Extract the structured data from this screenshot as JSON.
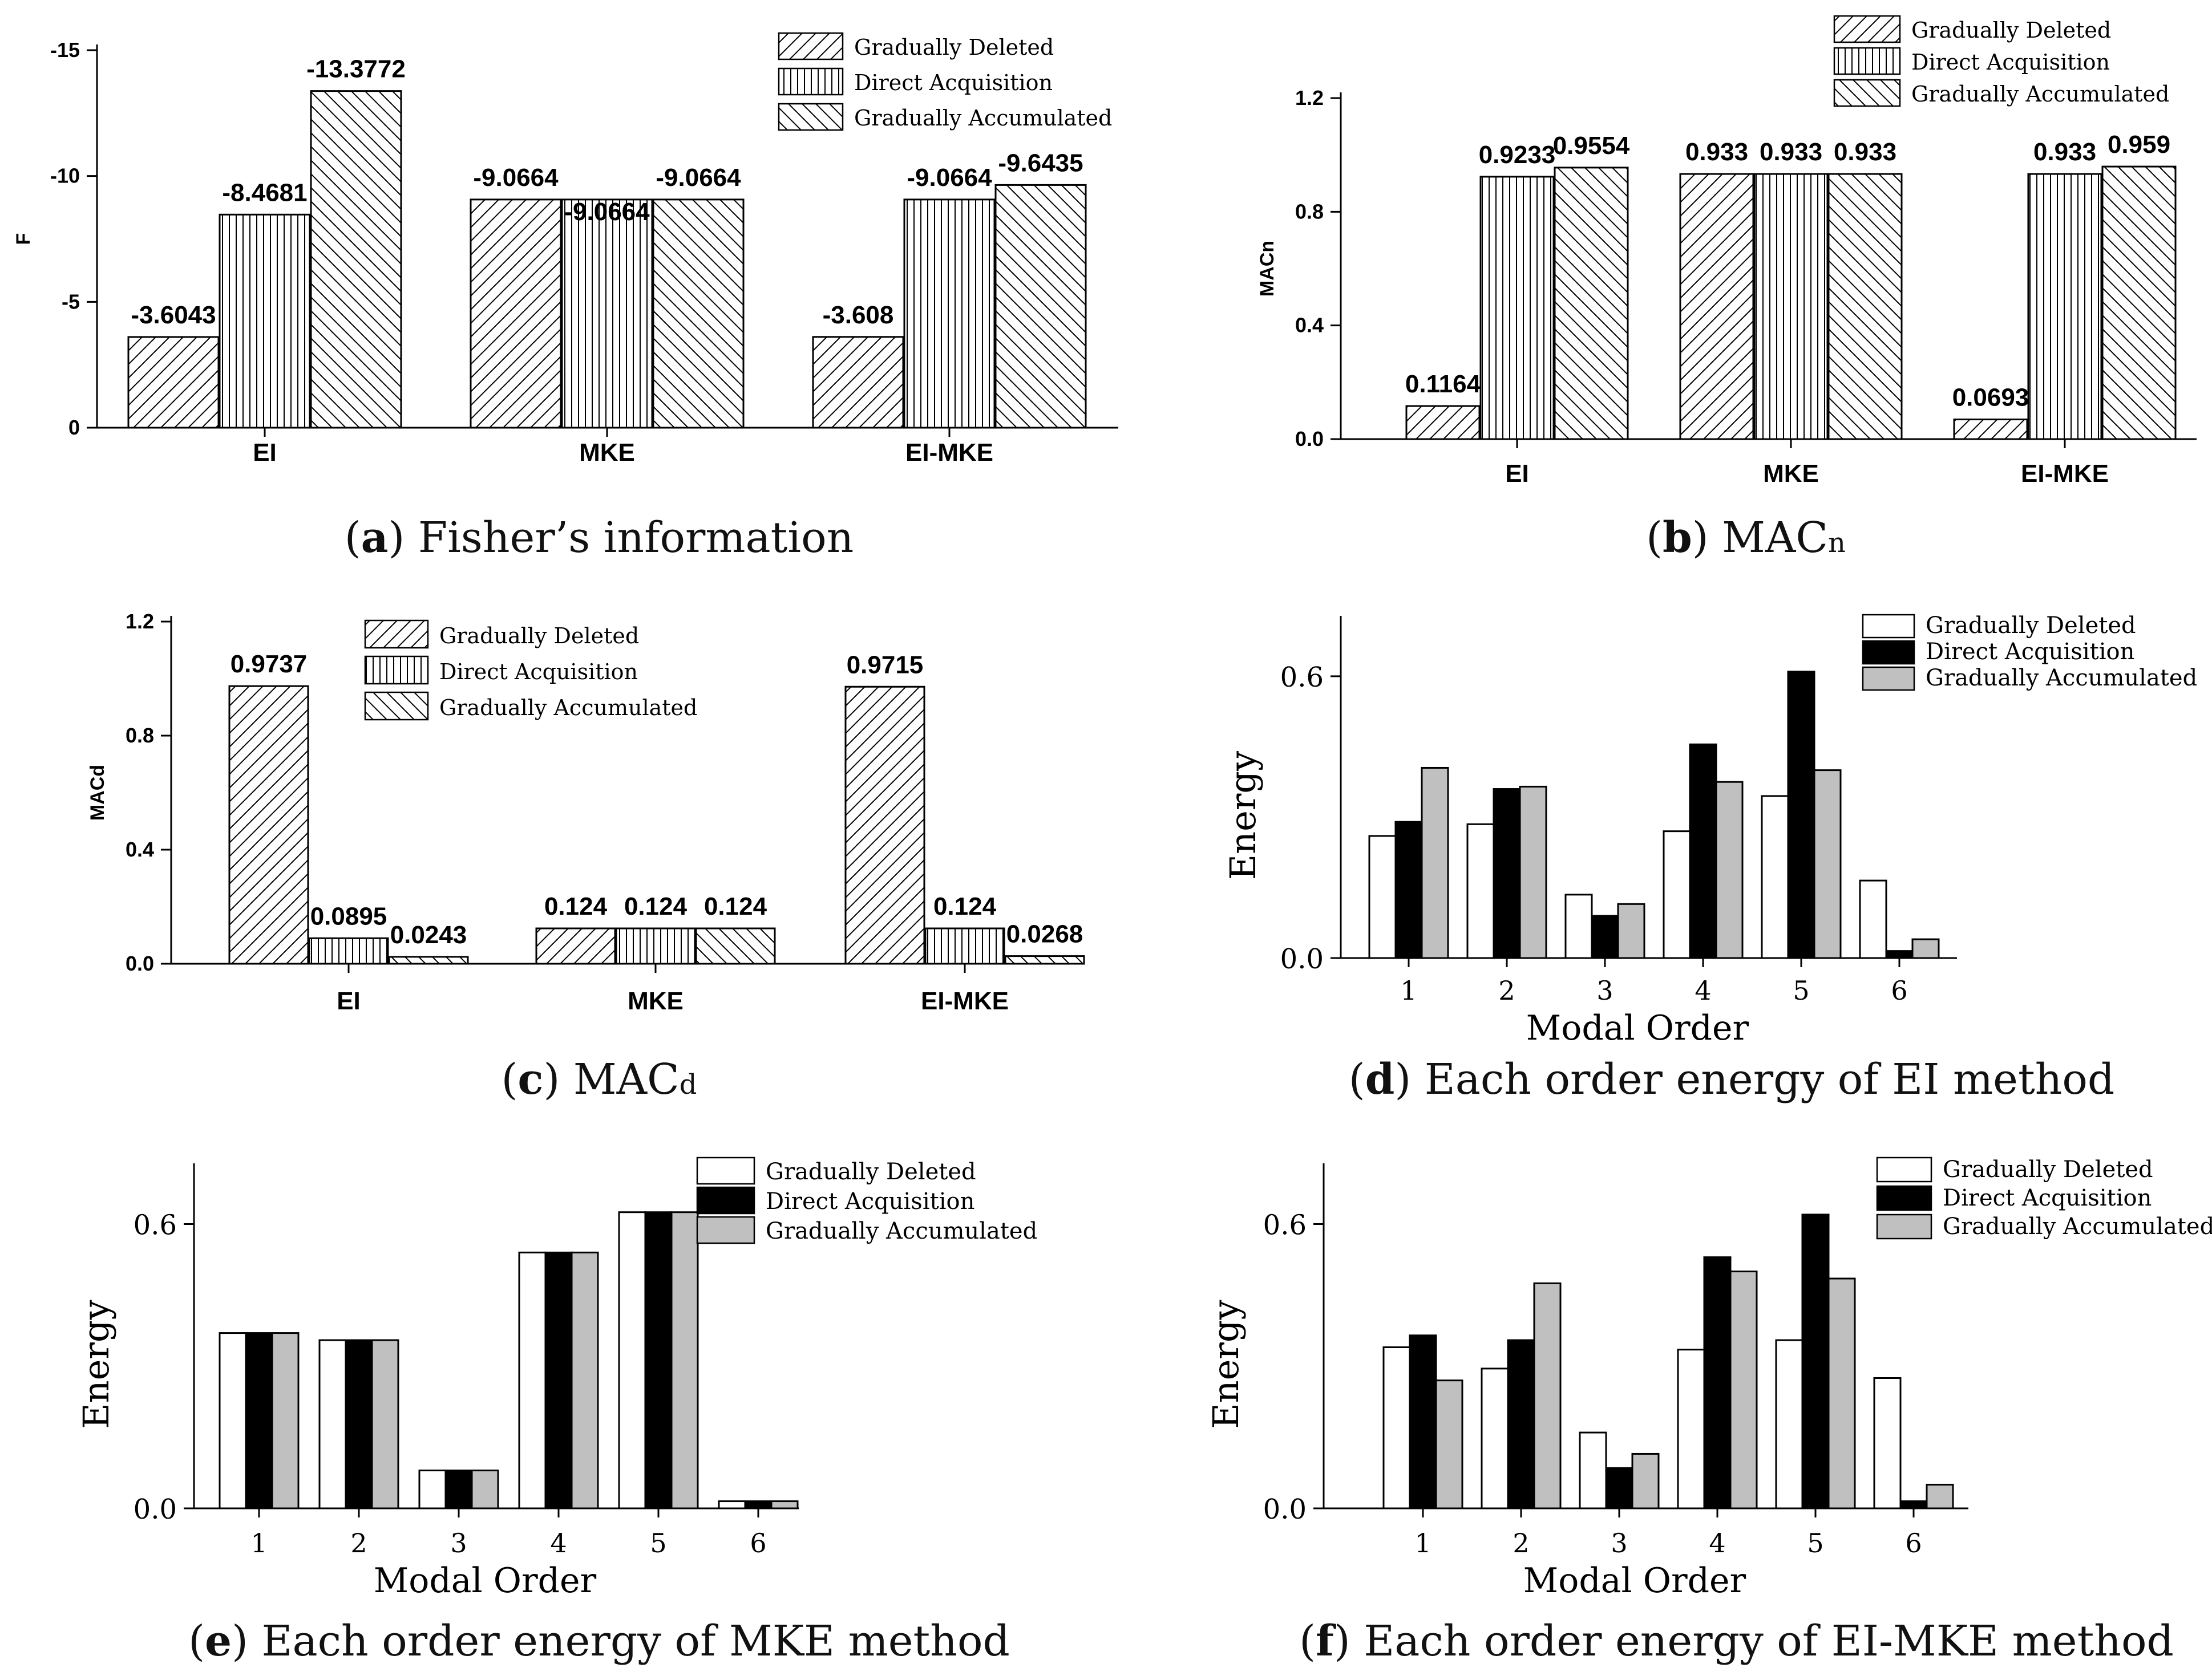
{
  "colors": {
    "bar_fill": "#ffffff",
    "stroke": "#000000",
    "series_solid": [
      "#ffffff",
      "#000000",
      "#c0c0c0"
    ]
  },
  "charts": [
    {
      "id": "a",
      "chart_data": {
        "type": "bar",
        "title": "",
        "xlabel": "",
        "ylabel": "F",
        "ylim": [
          0,
          -15
        ],
        "yticks": [
          "0",
          "-5",
          "-10",
          "-15"
        ],
        "ytick_values": [
          0,
          -5,
          -10,
          -15
        ],
        "categories": [
          "EI",
          "MKE",
          "EI-MKE"
        ],
        "legend": [
          "Gradually Deleted",
          "Direct Acquisition",
          "Gradually Accumulated"
        ],
        "legend_position": "top-right",
        "series": [
          {
            "name": "Gradually Deleted",
            "pattern": "diag",
            "values": [
              -3.6043,
              -9.0664,
              -3.608
            ],
            "labels": [
              "-3.6043",
              "-9.0664",
              "-3.608"
            ]
          },
          {
            "name": "Direct Acquisition",
            "pattern": "vert",
            "values": [
              -8.4681,
              -9.0664,
              -9.0664
            ],
            "labels": [
              "-8.4681",
              "-9.0664",
              "-9.0664"
            ]
          },
          {
            "name": "Gradually Accumulated",
            "pattern": "back",
            "values": [
              -13.3772,
              -9.0664,
              -9.6435
            ],
            "labels": [
              "-13.3772",
              "-9.0664",
              "-9.6435"
            ]
          }
        ]
      },
      "caption": {
        "letter": "a",
        "text": " Fisher’s information",
        "sub": ""
      }
    },
    {
      "id": "b",
      "chart_data": {
        "type": "bar",
        "title": "",
        "xlabel": "",
        "ylabel": "MACn",
        "ylim": [
          0,
          1.2
        ],
        "yticks": [
          "0.0",
          "0.4",
          "0.8",
          "1.2"
        ],
        "ytick_values": [
          0,
          0.4,
          0.8,
          1.2
        ],
        "categories": [
          "EI",
          "MKE",
          "EI-MKE"
        ],
        "legend": [
          "Gradually Deleted",
          "Direct Acquisition",
          "Gradually Accumulated"
        ],
        "legend_position": "top-right",
        "series": [
          {
            "name": "Gradually Deleted",
            "pattern": "diag",
            "values": [
              0.1164,
              0.933,
              0.0693
            ],
            "labels": [
              "0.1164",
              "0.933",
              "0.0693"
            ]
          },
          {
            "name": "Direct Acquisition",
            "pattern": "vert",
            "values": [
              0.9233,
              0.933,
              0.933
            ],
            "labels": [
              "0.9233",
              "0.933",
              "0.933"
            ]
          },
          {
            "name": "Gradually Accumulated",
            "pattern": "back",
            "values": [
              0.9554,
              0.933,
              0.959
            ],
            "labels": [
              "0.9554",
              "0.933",
              "0.959"
            ]
          }
        ]
      },
      "caption": {
        "letter": "b",
        "text": " MAC",
        "sub": "n"
      }
    },
    {
      "id": "c",
      "chart_data": {
        "type": "bar",
        "title": "",
        "xlabel": "",
        "ylabel": "MACd",
        "ylim": [
          0,
          1.2
        ],
        "yticks": [
          "0.0",
          "0.4",
          "0.8",
          "1.2"
        ],
        "ytick_values": [
          0,
          0.4,
          0.8,
          1.2
        ],
        "categories": [
          "EI",
          "MKE",
          "EI-MKE"
        ],
        "legend": [
          "Gradually Deleted",
          "Direct Acquisition",
          "Gradually Accumulated"
        ],
        "legend_position": "top-right",
        "series": [
          {
            "name": "Gradually Deleted",
            "pattern": "diag",
            "values": [
              0.9737,
              0.124,
              0.9715
            ],
            "labels": [
              "0.9737",
              "0.124",
              "0.9715"
            ]
          },
          {
            "name": "Direct Acquisition",
            "pattern": "vert",
            "values": [
              0.0895,
              0.124,
              0.124
            ],
            "labels": [
              "0.0895",
              "0.124",
              "0.124"
            ]
          },
          {
            "name": "Gradually Accumulated",
            "pattern": "back",
            "values": [
              0.0243,
              0.124,
              0.0268
            ],
            "labels": [
              "0.0243",
              "0.124",
              "0.0268"
            ]
          }
        ]
      },
      "caption": {
        "letter": "c",
        "text": " MAC",
        "sub": "d"
      }
    },
    {
      "id": "d",
      "chart_data": {
        "type": "bar",
        "title": "",
        "xlabel": "Modal Order",
        "ylabel": "Energy",
        "ylim": [
          0,
          0.68
        ],
        "yticks": [
          "0.0",
          "0.6"
        ],
        "ytick_values": [
          0,
          0.6
        ],
        "categories": [
          "1",
          "2",
          "3",
          "4",
          "5",
          "6"
        ],
        "legend": [
          "Gradually Deleted",
          "Direct Acquisition",
          "Gradually Accumulated"
        ],
        "legend_position": "top-right",
        "series": [
          {
            "name": "Gradually Deleted",
            "values": [
              0.26,
              0.285,
              0.135,
              0.27,
              0.345,
              0.165
            ]
          },
          {
            "name": "Direct Acquisition",
            "values": [
              0.29,
              0.36,
              0.09,
              0.455,
              0.61,
              0.015
            ]
          },
          {
            "name": "Gradually Accumulated",
            "values": [
              0.405,
              0.365,
              0.115,
              0.375,
              0.4,
              0.04
            ]
          }
        ]
      },
      "caption": {
        "letter": "d",
        "text": " Each order energy of EI method",
        "sub": ""
      }
    },
    {
      "id": "e",
      "chart_data": {
        "type": "bar",
        "title": "",
        "xlabel": "Modal Order",
        "ylabel": "Energy",
        "ylim": [
          0,
          0.68
        ],
        "yticks": [
          "0.0",
          "0.6"
        ],
        "ytick_values": [
          0,
          0.6
        ],
        "categories": [
          "1",
          "2",
          "3",
          "4",
          "5",
          "6"
        ],
        "legend": [
          "Gradually Deleted",
          "Direct Acquisition",
          "Gradually Accumulated"
        ],
        "legend_position": "top-right",
        "series": [
          {
            "name": "Gradually Deleted",
            "values": [
              0.37,
              0.355,
              0.08,
              0.54,
              0.625,
              0.015
            ]
          },
          {
            "name": "Direct Acquisition",
            "values": [
              0.37,
              0.355,
              0.08,
              0.54,
              0.625,
              0.015
            ]
          },
          {
            "name": "Gradually Accumulated",
            "values": [
              0.37,
              0.355,
              0.08,
              0.54,
              0.625,
              0.015
            ]
          }
        ]
      },
      "caption": {
        "letter": "e",
        "text": " Each order energy of MKE method",
        "sub": ""
      }
    },
    {
      "id": "f",
      "chart_data": {
        "type": "bar",
        "title": "",
        "xlabel": "Modal Order",
        "ylabel": "Energy",
        "ylim": [
          0,
          0.68
        ],
        "yticks": [
          "0.0",
          "0.6"
        ],
        "ytick_values": [
          0,
          0.6
        ],
        "categories": [
          "1",
          "2",
          "3",
          "4",
          "5",
          "6"
        ],
        "legend": [
          "Gradually Deleted",
          "Direct Acquisition",
          "Gradually Accumulated"
        ],
        "legend_position": "top-right",
        "series": [
          {
            "name": "Gradually Deleted",
            "values": [
              0.34,
              0.295,
              0.16,
              0.335,
              0.355,
              0.275
            ]
          },
          {
            "name": "Direct Acquisition",
            "values": [
              0.365,
              0.355,
              0.085,
              0.53,
              0.62,
              0.015
            ]
          },
          {
            "name": "Gradually Accumulated",
            "values": [
              0.27,
              0.475,
              0.115,
              0.5,
              0.485,
              0.05
            ]
          }
        ]
      },
      "caption": {
        "letter": "f",
        "text": " Each order energy of EI-MKE method",
        "sub": ""
      }
    }
  ]
}
